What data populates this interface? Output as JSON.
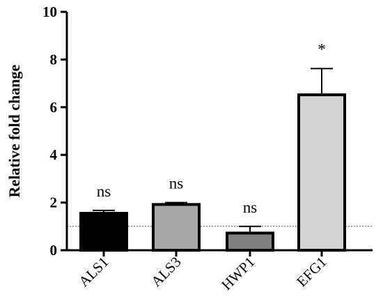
{
  "chart_data": {
    "type": "bar",
    "title": "",
    "xlabel": "",
    "ylabel": "Relative fold change",
    "ylim": [
      0,
      10
    ],
    "yticks": [
      "0",
      "2",
      "4",
      "6",
      "8",
      "10"
    ],
    "categories": [
      "ALS1",
      "ALS3",
      "HWP1",
      "EFG1"
    ],
    "values": [
      1.55,
      1.92,
      0.72,
      6.52
    ],
    "errors": [
      0.12,
      0.08,
      0.28,
      1.1
    ],
    "annotations": [
      "ns",
      "ns",
      "ns",
      "*"
    ],
    "bar_colors": [
      "#000000",
      "#a8a8a8",
      "#808080",
      "#d3d3d3"
    ],
    "reference_line": 1,
    "grid": false,
    "legend": "none"
  }
}
